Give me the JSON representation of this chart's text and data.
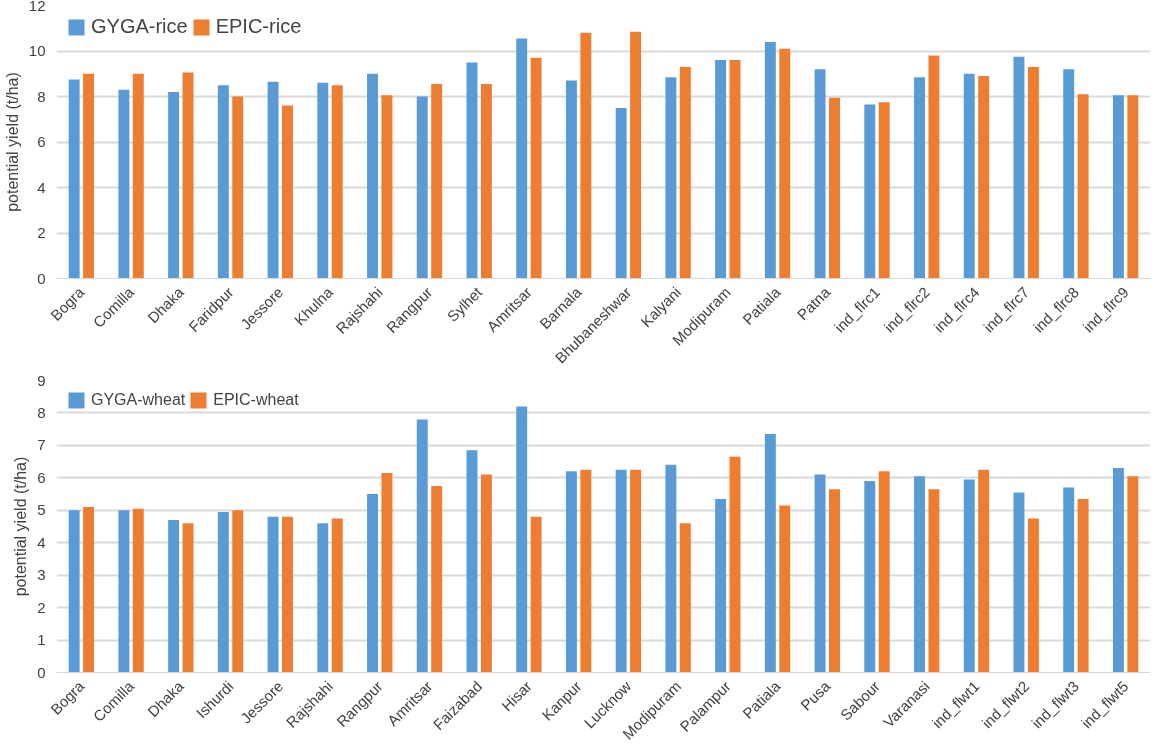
{
  "chart_data": [
    {
      "type": "bar",
      "ylabel": "potential yield (t/ha)",
      "categories": [
        "Bogra",
        "Comilla",
        "Dhaka",
        "Faridpur",
        "Jessore",
        "Khulna",
        "Rajshahi",
        "Rangpur",
        "Sylhet",
        "Amritsar",
        "Barnala",
        "Bhubaneshwar",
        "Kalyani",
        "Modipuram",
        "Patiala",
        "Patna",
        "ind_flrc1",
        "ind_flrc2",
        "ind_flrc4",
        "ind_flrc7",
        "ind_flrc8",
        "ind_flrc9"
      ],
      "series": [
        {
          "name": "GYGA-rice",
          "color": "#5b9bd5",
          "values": [
            8.75,
            8.3,
            8.2,
            8.5,
            8.65,
            8.6,
            9.0,
            8.0,
            9.5,
            10.55,
            8.7,
            7.5,
            8.85,
            9.6,
            10.4,
            9.2,
            7.65,
            8.85,
            9.0,
            9.75,
            9.2,
            8.05
          ]
        },
        {
          "name": "EPIC-rice",
          "color": "#ed7d31",
          "values": [
            9.0,
            9.0,
            9.05,
            8.0,
            7.6,
            8.5,
            8.05,
            8.55,
            8.55,
            9.7,
            10.8,
            10.85,
            9.3,
            9.6,
            10.1,
            7.95,
            7.75,
            9.8,
            8.9,
            9.3,
            8.1,
            8.05
          ]
        }
      ],
      "ylim": [
        0,
        12
      ],
      "yticks": [
        0,
        2,
        4,
        6,
        8,
        10,
        12
      ],
      "grid": "y",
      "legend": "top left"
    },
    {
      "type": "bar",
      "ylabel": "potential yield (t/ha)",
      "categories": [
        "Bogra",
        "Comilla",
        "Dhaka",
        "Ishurdi",
        "Jessore",
        "Rajshahi",
        "Rangpur",
        "Amritsar",
        "Faizabad",
        "Hisar",
        "Kanpur",
        "Lucknow",
        "Modipuram",
        "Palampur",
        "Patiala",
        "Pusa",
        "Sabour",
        "Varanasi",
        "ind_flwt1",
        "ind_flwt2",
        "ind_flwt3",
        "ind_flwt5"
      ],
      "series": [
        {
          "name": "GYGA-wheat",
          "color": "#5b9bd5",
          "values": [
            5.0,
            5.0,
            4.7,
            4.95,
            4.8,
            4.6,
            5.5,
            7.8,
            6.85,
            8.2,
            6.2,
            6.25,
            6.4,
            5.35,
            7.35,
            6.1,
            5.9,
            6.05,
            5.95,
            5.55,
            5.7,
            6.3
          ]
        },
        {
          "name": "EPIC-wheat",
          "color": "#ed7d31",
          "values": [
            5.1,
            5.05,
            4.6,
            5.0,
            4.8,
            4.75,
            6.15,
            5.75,
            6.1,
            4.8,
            6.25,
            6.25,
            4.6,
            6.65,
            5.15,
            5.65,
            6.2,
            5.65,
            6.25,
            4.75,
            5.35,
            6.05
          ]
        }
      ],
      "ylim": [
        0,
        9
      ],
      "yticks": [
        0,
        1,
        2,
        3,
        4,
        5,
        6,
        7,
        8,
        9
      ],
      "grid": "y",
      "legend": "top left"
    }
  ]
}
